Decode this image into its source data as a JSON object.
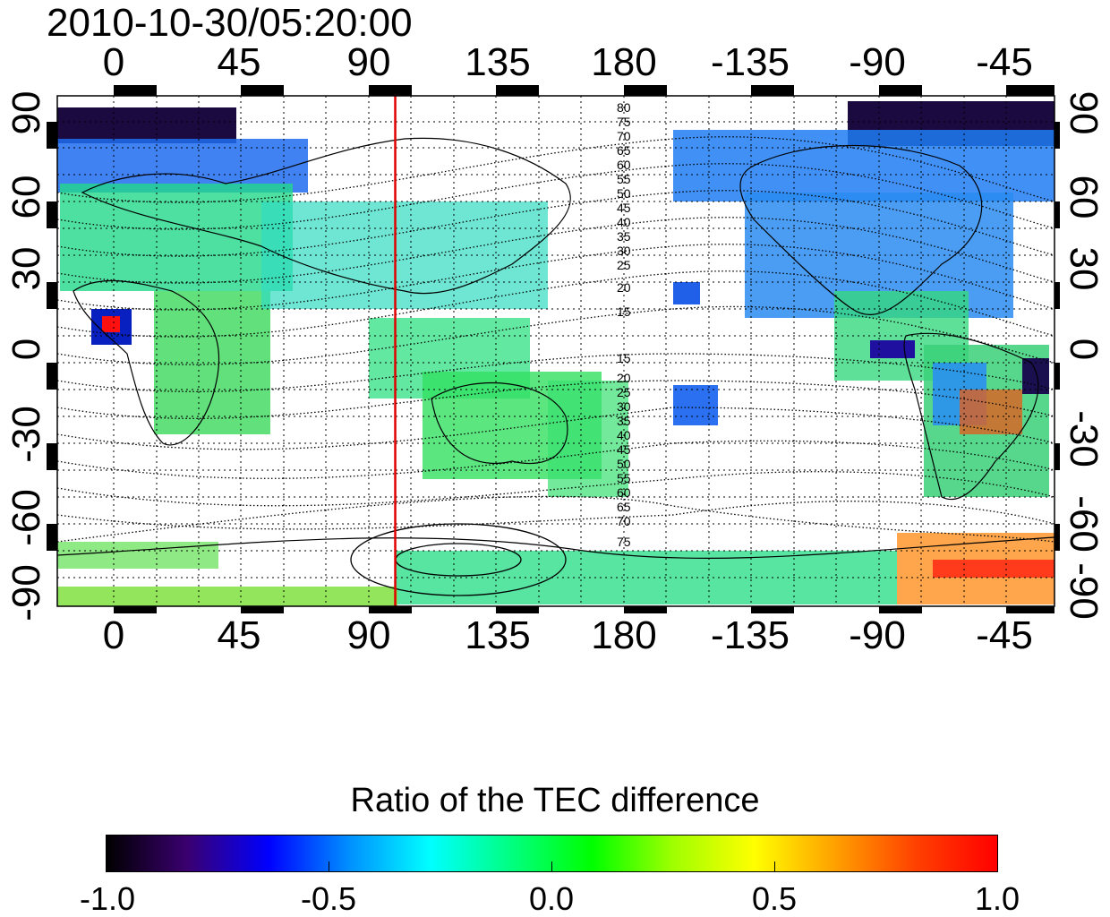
{
  "title": "2010-10-30/05:20:00",
  "x_ticks": [
    "0",
    "45",
    "90",
    "135",
    "180",
    "-135",
    "-90",
    "-45"
  ],
  "y_ticks_left": [
    "90",
    "60",
    "30",
    "0",
    "-30",
    "-60",
    "-90"
  ],
  "y_ticks_right": [
    "90",
    "60",
    "30",
    "0",
    "-30",
    "-60",
    "-90"
  ],
  "contour_labels_north": [
    "80",
    "75",
    "70",
    "65",
    "60",
    "55",
    "50",
    "45",
    "40",
    "35",
    "30",
    "25",
    "20",
    "15"
  ],
  "contour_labels_south": [
    "15",
    "20",
    "25",
    "30",
    "35",
    "40",
    "45",
    "50",
    "55",
    "60",
    "65",
    "70",
    "75"
  ],
  "colorbar": {
    "title": "Ratio of the TEC difference",
    "labels": [
      "-1.0",
      "-0.5",
      "0.0",
      "0.5",
      "1.0"
    ],
    "min": -1.0,
    "max": 1.0,
    "colors": [
      "#000000",
      "#3a0070",
      "#0000ff",
      "#0090ff",
      "#00ffff",
      "#00ff80",
      "#00ff00",
      "#a0ff00",
      "#ffff00",
      "#ffa000",
      "#ff4000",
      "#ff0000"
    ]
  },
  "map": {
    "lon_range": [
      -20,
      340
    ],
    "lat_range": [
      -90,
      90
    ],
    "marker_longitude": 102,
    "marker_color": "#e00000"
  }
}
